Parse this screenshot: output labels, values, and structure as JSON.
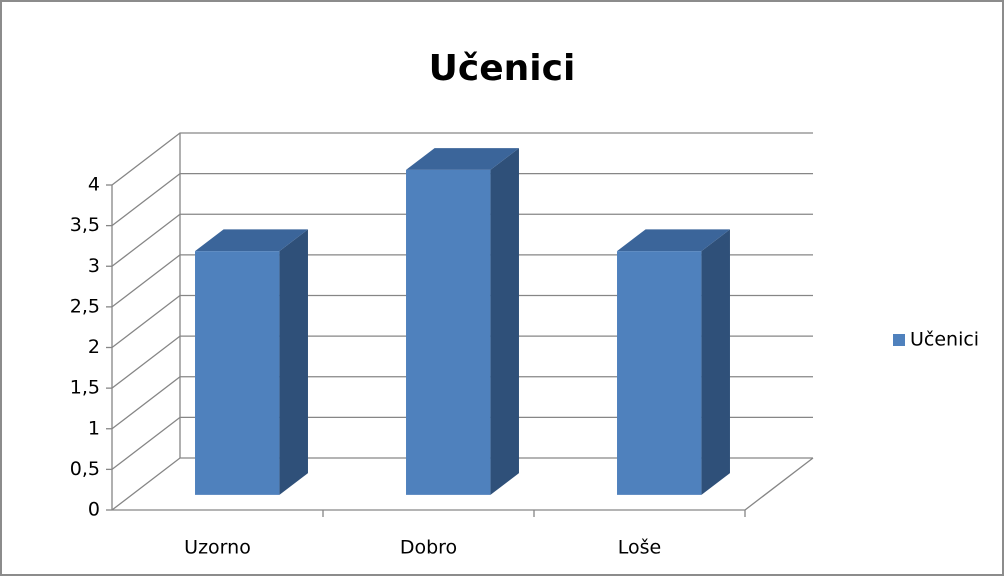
{
  "chart_data": {
    "type": "bar3d",
    "title": "Učenici",
    "categories": [
      "Uzorno",
      "Dobro",
      "Loše"
    ],
    "series": [
      {
        "name": "Učenici",
        "color": "#4f81bd",
        "values": [
          3,
          4,
          3
        ]
      }
    ],
    "ylim": [
      0,
      4
    ],
    "yticks": [
      0,
      {
        "value": 0.5,
        "label": "0,5"
      },
      1,
      {
        "value": 1.5,
        "label": "1,5"
      },
      2,
      {
        "value": 2.5,
        "label": "2,5"
      },
      3,
      {
        "value": 3.5,
        "label": "3,5"
      },
      4
    ],
    "grid": true,
    "legend": "right"
  }
}
